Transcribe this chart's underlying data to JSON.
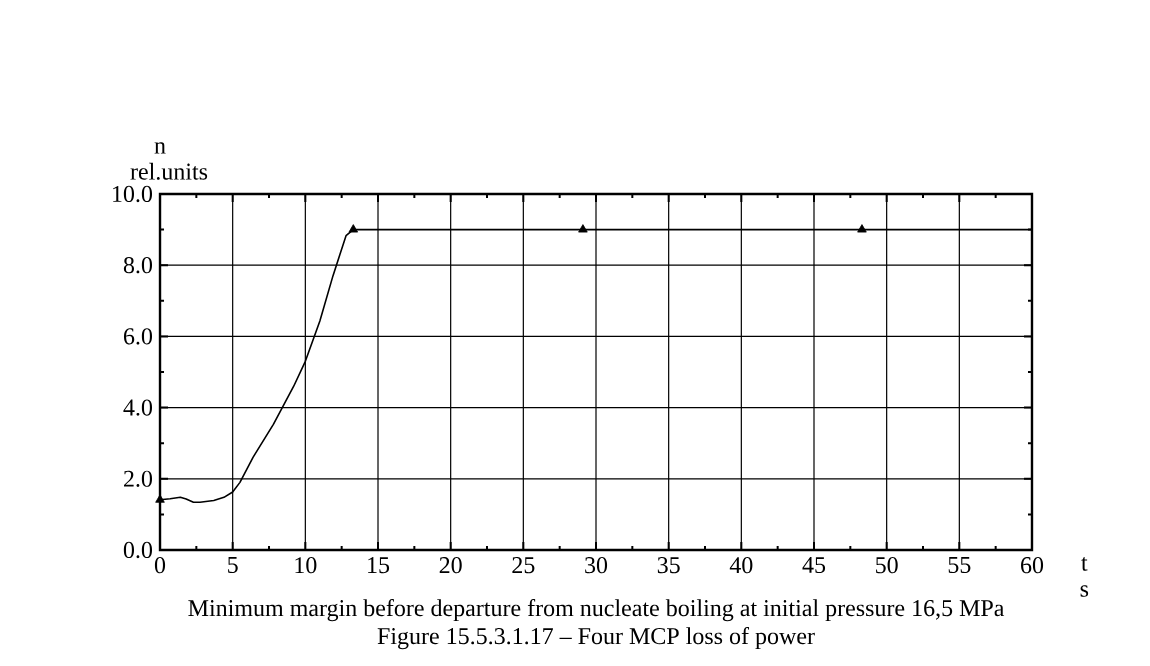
{
  "chart_data": {
    "type": "line",
    "title": "Minimum margin before departure from nucleate boiling at initial pressure 16,5 MPa",
    "subtitle": "Figure 15.5.3.1.17 – Four MCP loss of power",
    "xlabel": "t s",
    "ylabel": "n rel.units",
    "xlim": [
      0,
      60
    ],
    "xticks": [
      0,
      5,
      10,
      15,
      20,
      25,
      30,
      35,
      40,
      45,
      50,
      55,
      60
    ],
    "ylim": [
      0,
      10
    ],
    "yticks": [
      {
        "value": 0,
        "label": "0.0"
      },
      {
        "value": 2,
        "label": "2.0"
      },
      {
        "value": 4,
        "label": "4.0"
      },
      {
        "value": 6,
        "label": "6.0"
      },
      {
        "value": 8,
        "label": "8.0"
      },
      {
        "value": 10,
        "label": "10.0"
      }
    ],
    "grid": true,
    "series": [
      {
        "color": "#000000",
        "marker": "none",
        "x": [
          0,
          0.7,
          1.4,
          1.8,
          2.3,
          2.75,
          3.7,
          4.4,
          5,
          5.5,
          6.4,
          7.8,
          9.2,
          10,
          11,
          11.9,
          12.8,
          13.3,
          60
        ],
        "values": [
          1.41,
          1.44,
          1.48,
          1.43,
          1.34,
          1.34,
          1.39,
          1.48,
          1.63,
          1.9,
          2.6,
          3.53,
          4.6,
          5.3,
          6.43,
          7.7,
          8.83,
          9.0,
          9.0
        ]
      },
      {
        "type": "scatter",
        "color": "#000000",
        "marker": "triangle",
        "x": [
          0,
          13.3,
          29.1,
          48.3
        ],
        "values": [
          1.41,
          9.0,
          9.0,
          9.0
        ]
      }
    ]
  }
}
